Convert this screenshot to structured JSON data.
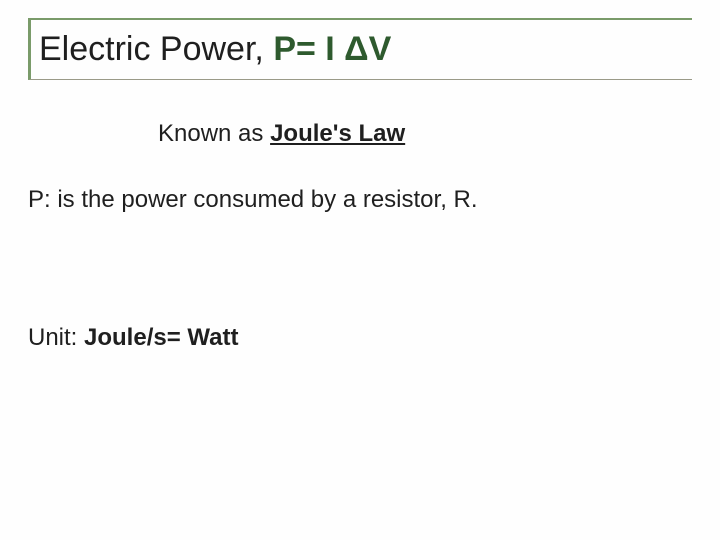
{
  "colors": {
    "border_left_top": "#7a9b6a",
    "border_bottom": "#9a9a88",
    "title_text": "#1f1f1f",
    "title_bold": "#2e5a2e",
    "body_text": "#1f1f1f",
    "background": "#fefefe"
  },
  "typography": {
    "title_fontsize": 34,
    "body_fontsize": 24,
    "font_family": "Arial"
  },
  "title": {
    "prefix": "Electric Power, ",
    "bold": "P= I ΔV"
  },
  "subtitle": {
    "prefix": "Known as ",
    "underlined": "Joule's Law"
  },
  "body": "P: is the power consumed by a resistor, R.",
  "unit": {
    "prefix": "Unit: ",
    "bold": "Joule/s= Watt"
  }
}
